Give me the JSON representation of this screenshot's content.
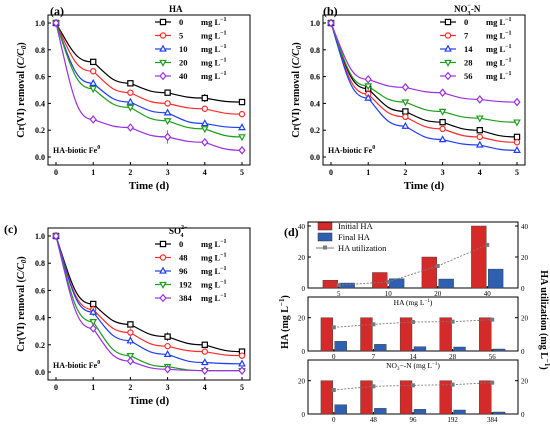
{
  "colors": {
    "c0": "#000000",
    "c1": "#ff2b2b",
    "c2": "#1f3df5",
    "c3": "#1e9e1e",
    "c4": "#9b30e0",
    "bar_initial": "#d42a2a",
    "bar_final": "#2f5fb0",
    "util": "#7a7a7a"
  },
  "chart_data": [
    {
      "panel": "(a)",
      "type": "line",
      "ylabel": "Cr(VI) removal (C/C0)",
      "xlabel": "Time (d)",
      "legend_title": "HA",
      "annotation": "HA-biotic Fe0",
      "xlim": [
        0,
        5
      ],
      "ylim": [
        0,
        1.0
      ],
      "xticks": [
        "0",
        "1",
        "2",
        "3",
        "4",
        "5"
      ],
      "yticks": [
        "0.0",
        "0.2",
        "0.4",
        "0.6",
        "0.8",
        "1.0"
      ],
      "x": [
        0,
        1,
        2,
        3,
        4,
        5
      ],
      "series": [
        {
          "name": "0",
          "unit": "mg L-1",
          "marker": "square",
          "values": [
            1.0,
            0.71,
            0.55,
            0.48,
            0.44,
            0.41
          ],
          "err": [
            0,
            0.01,
            0.02,
            0.02,
            0.03,
            0.02
          ]
        },
        {
          "name": "5",
          "unit": "mg L-1",
          "marker": "circle",
          "values": [
            1.0,
            0.64,
            0.48,
            0.4,
            0.36,
            0.32
          ],
          "err": [
            0,
            0.02,
            0.02,
            0.02,
            0.02,
            0.02
          ]
        },
        {
          "name": "10",
          "unit": "mg L-1",
          "marker": "triangle-up",
          "values": [
            1.0,
            0.55,
            0.41,
            0.33,
            0.25,
            0.22
          ],
          "err": [
            0,
            0.02,
            0.02,
            0.02,
            0.02,
            0.02
          ]
        },
        {
          "name": "20",
          "unit": "mg L-1",
          "marker": "triangle-down",
          "values": [
            1.0,
            0.51,
            0.37,
            0.27,
            0.21,
            0.15
          ],
          "err": [
            0,
            0.03,
            0.02,
            0.02,
            0.02,
            0.02
          ]
        },
        {
          "name": "40",
          "unit": "mg L-1",
          "marker": "diamond",
          "values": [
            1.0,
            0.28,
            0.22,
            0.15,
            0.11,
            0.05
          ],
          "err": [
            0,
            0.03,
            0.02,
            0.05,
            0.03,
            0.02
          ]
        }
      ]
    },
    {
      "panel": "(b)",
      "type": "line",
      "ylabel": "Cr(VI) removal (C/C0)",
      "xlabel": "Time (d)",
      "legend_title": "NO3−-N",
      "annotation": "HA-biotic Fe0",
      "xlim": [
        0,
        5
      ],
      "ylim": [
        0,
        1.0
      ],
      "xticks": [
        "0",
        "1",
        "2",
        "3",
        "4",
        "5"
      ],
      "yticks": [
        "0.0",
        "0.2",
        "0.4",
        "0.6",
        "0.8",
        "1.0"
      ],
      "x": [
        0,
        1,
        2,
        3,
        4,
        5
      ],
      "series": [
        {
          "name": "0",
          "unit": "mg L-1",
          "marker": "square",
          "values": [
            1.0,
            0.51,
            0.34,
            0.26,
            0.2,
            0.15
          ],
          "err": [
            0,
            0.02,
            0.02,
            0.02,
            0.02,
            0.02
          ]
        },
        {
          "name": "7",
          "unit": "mg L-1",
          "marker": "circle",
          "values": [
            1.0,
            0.47,
            0.3,
            0.21,
            0.15,
            0.11
          ],
          "err": [
            0,
            0.03,
            0.02,
            0.02,
            0.02,
            0.01
          ]
        },
        {
          "name": "14",
          "unit": "mg L-1",
          "marker": "triangle-up",
          "values": [
            1.0,
            0.44,
            0.23,
            0.13,
            0.09,
            0.05
          ],
          "err": [
            0,
            0.02,
            0.02,
            0.02,
            0.01,
            0.01
          ]
        },
        {
          "name": "28",
          "unit": "mg L-1",
          "marker": "triangle-down",
          "values": [
            1.0,
            0.53,
            0.41,
            0.34,
            0.29,
            0.26
          ],
          "err": [
            0,
            0.02,
            0.02,
            0.02,
            0.02,
            0.02
          ]
        },
        {
          "name": "56",
          "unit": "mg L-1",
          "marker": "diamond",
          "values": [
            1.0,
            0.58,
            0.52,
            0.48,
            0.43,
            0.41
          ],
          "err": [
            0,
            0.02,
            0.02,
            0.02,
            0.02,
            0.02
          ]
        }
      ]
    },
    {
      "panel": "(c)",
      "type": "line",
      "ylabel": "Cr(VI) removal (C/C0)",
      "xlabel": "Time (d)",
      "legend_title": "SO42−",
      "annotation": "HA-biotic Fe0",
      "xlim": [
        0,
        5
      ],
      "ylim": [
        0,
        1.0
      ],
      "xticks": [
        "0",
        "1",
        "2",
        "3",
        "4",
        "5"
      ],
      "yticks": [
        "0.0",
        "0.2",
        "0.4",
        "0.6",
        "0.8",
        "1.0"
      ],
      "x": [
        0,
        1,
        2,
        3,
        4,
        5
      ],
      "series": [
        {
          "name": "0",
          "unit": "mg L-1",
          "marker": "square",
          "values": [
            1.0,
            0.5,
            0.35,
            0.26,
            0.2,
            0.15
          ],
          "err": [
            0,
            0.02,
            0.02,
            0.03,
            0.02,
            0.02
          ]
        },
        {
          "name": "48",
          "unit": "mg L-1",
          "marker": "circle",
          "values": [
            1.0,
            0.46,
            0.29,
            0.19,
            0.15,
            0.12
          ],
          "err": [
            0,
            0.03,
            0.03,
            0.02,
            0.02,
            0.02
          ]
        },
        {
          "name": "96",
          "unit": "mg L-1",
          "marker": "triangle-up",
          "values": [
            1.0,
            0.44,
            0.23,
            0.13,
            0.07,
            0.06
          ],
          "err": [
            0,
            0.03,
            0.03,
            0.02,
            0.02,
            0.01
          ]
        },
        {
          "name": "192",
          "unit": "mg L-1",
          "marker": "triangle-down",
          "values": [
            1.0,
            0.37,
            0.12,
            0.04,
            0.01,
            0.01
          ],
          "err": [
            0,
            0.02,
            0.02,
            0.01,
            0.01,
            0.01
          ]
        },
        {
          "name": "384",
          "unit": "mg L-1",
          "marker": "diamond",
          "values": [
            1.0,
            0.32,
            0.08,
            0.02,
            0.01,
            0.01
          ],
          "err": [
            0,
            0.02,
            0.02,
            0.01,
            0.01,
            0.01
          ]
        }
      ]
    },
    {
      "panel": "(d)",
      "type": "bar",
      "ylabel": "HA (mg L-1)",
      "ylabel_right": "HA utilization (mg L-1)",
      "legend": [
        "Initial HA",
        "Final HA",
        "HA utilization"
      ],
      "subplots": [
        {
          "xlabel": "HA (mg L-1)",
          "categories": [
            "5",
            "10",
            "20",
            "40"
          ],
          "ylim": [
            0,
            40
          ],
          "yticks": [
            "0",
            "20",
            "40"
          ],
          "ylim_right": [
            0,
            40
          ],
          "yticks_right": [
            "0",
            "20",
            "40"
          ],
          "initial": [
            5,
            10,
            20,
            40
          ],
          "final": [
            3.2,
            6.0,
            5.8,
            12.2
          ],
          "utilization": [
            1.8,
            4.0,
            14.2,
            27.8
          ]
        },
        {
          "xlabel": "NO3−-N (mg L-1)",
          "categories": [
            "0",
            "7",
            "14",
            "28",
            "56"
          ],
          "ylim": [
            0,
            30
          ],
          "yticks": [
            "0",
            "20"
          ],
          "ylim_right": [
            0,
            30
          ],
          "yticks_right": [
            "0",
            "20"
          ],
          "initial": [
            20,
            20,
            20,
            20,
            20
          ],
          "final": [
            5.8,
            4.0,
            2.6,
            2.4,
            1.2
          ],
          "utilization": [
            14.2,
            16.0,
            17.4,
            17.6,
            18.8
          ]
        },
        {
          "xlabel": "SO42− (mg L-1)",
          "categories": [
            "0",
            "48",
            "96",
            "192",
            "384"
          ],
          "ylim": [
            0,
            30
          ],
          "yticks": [
            "0",
            "20"
          ],
          "ylim_right": [
            0,
            30
          ],
          "yticks_right": [
            "0",
            "20"
          ],
          "initial": [
            20,
            20,
            20,
            20,
            20
          ],
          "final": [
            5.6,
            3.4,
            2.8,
            2.4,
            1.2
          ],
          "utilization": [
            14.4,
            16.6,
            17.2,
            17.6,
            18.8
          ]
        }
      ]
    }
  ]
}
